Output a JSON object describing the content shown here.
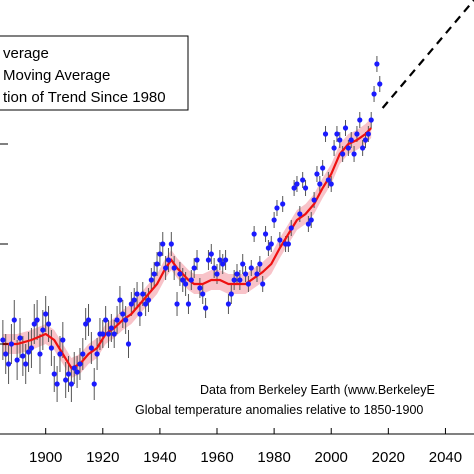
{
  "chart_data": {
    "type": "scatter",
    "xlim": [
      1884,
      2050
    ],
    "ylim": [
      -0.45,
      1.72
    ],
    "x_ticks": [
      "1900",
      "1920",
      "1940",
      "1960",
      "1980",
      "2000",
      "2020",
      "2040"
    ],
    "grid": false,
    "legend": {
      "placement": "top-left",
      "entries": [
        "verage",
        "Moving Average",
        "tion of Trend Since 1980"
      ]
    },
    "annotations": [
      "Data from Berkeley Earth (www.BerkeleyE",
      "Global temperature anomalies relative to 1850-1900"
    ],
    "colors": {
      "annual": "#1a1aff",
      "moving_average": "#ee1111",
      "uncertainty_band": "#f7b8c0",
      "error_bar": "#555555",
      "trend": "#000000"
    },
    "series": [
      {
        "type": "scatter-errorbar",
        "x": [
          1885,
          1886,
          1887,
          1888,
          1889,
          1890,
          1891,
          1892,
          1893,
          1894,
          1895,
          1896,
          1897,
          1898,
          1899,
          1900,
          1901,
          1902,
          1903,
          1904,
          1905,
          1906,
          1907,
          1908,
          1909,
          1910,
          1911,
          1912,
          1913,
          1914,
          1915,
          1916,
          1917,
          1918,
          1919,
          1920,
          1921,
          1922,
          1923,
          1924,
          1925,
          1926,
          1927,
          1928,
          1929,
          1930,
          1931,
          1932,
          1933,
          1934,
          1935,
          1936,
          1937,
          1938,
          1939,
          1940,
          1941,
          1942,
          1943,
          1944,
          1945,
          1946,
          1947,
          1948,
          1949,
          1950,
          1951,
          1952,
          1953,
          1954,
          1955,
          1956,
          1957,
          1958,
          1959,
          1960,
          1961,
          1962,
          1963,
          1964,
          1965,
          1966,
          1967,
          1968,
          1969,
          1970,
          1971,
          1972,
          1973,
          1974,
          1975,
          1976,
          1977,
          1978,
          1979,
          1980,
          1981,
          1982,
          1983,
          1984,
          1985,
          1986,
          1987,
          1988,
          1989,
          1990,
          1991,
          1992,
          1993,
          1994,
          1995,
          1996,
          1997,
          1998,
          1999,
          2000,
          2001,
          2002,
          2003,
          2004,
          2005,
          2006,
          2007,
          2008,
          2009,
          2010,
          2011,
          2012,
          2013,
          2014,
          2015,
          2016,
          2017
        ],
        "y": [
          0.02,
          -0.05,
          -0.1,
          0.0,
          0.12,
          -0.08,
          0.03,
          -0.06,
          -0.1,
          -0.04,
          -0.02,
          0.1,
          0.12,
          -0.05,
          0.07,
          0.15,
          0.1,
          -0.02,
          -0.15,
          -0.2,
          -0.05,
          0.02,
          -0.18,
          -0.15,
          -0.2,
          -0.12,
          -0.14,
          -0.1,
          -0.05,
          0.1,
          0.12,
          -0.02,
          -0.2,
          -0.05,
          0.05,
          0.05,
          0.12,
          0.05,
          0.08,
          0.05,
          0.12,
          0.22,
          0.15,
          0.12,
          0.0,
          0.2,
          0.22,
          0.25,
          0.15,
          0.25,
          0.2,
          0.22,
          0.32,
          0.35,
          0.4,
          0.45,
          0.5,
          0.38,
          0.42,
          0.5,
          0.38,
          0.2,
          0.35,
          0.32,
          0.3,
          0.2,
          0.32,
          0.38,
          0.42,
          0.28,
          0.25,
          0.18,
          0.42,
          0.45,
          0.38,
          0.35,
          0.42,
          0.4,
          0.42,
          0.2,
          0.25,
          0.32,
          0.35,
          0.32,
          0.4,
          0.35,
          0.3,
          0.38,
          0.55,
          0.35,
          0.4,
          0.3,
          0.55,
          0.48,
          0.5,
          0.62,
          0.68,
          0.52,
          0.7,
          0.5,
          0.5,
          0.58,
          0.78,
          0.8,
          0.65,
          0.82,
          0.78,
          0.6,
          0.62,
          0.72,
          0.85,
          0.8,
          0.88,
          1.05,
          0.82,
          0.8,
          0.98,
          1.05,
          1.02,
          0.95,
          1.08,
          0.98,
          1.02,
          0.95,
          1.05,
          1.12,
          0.98,
          1.02,
          1.05,
          1.12,
          1.25,
          1.4,
          1.3
        ],
        "err": [
          0.1,
          0.1,
          0.1,
          0.1,
          0.1,
          0.1,
          0.1,
          0.1,
          0.1,
          0.1,
          0.1,
          0.1,
          0.1,
          0.1,
          0.1,
          0.09,
          0.09,
          0.09,
          0.09,
          0.09,
          0.09,
          0.09,
          0.09,
          0.09,
          0.09,
          0.08,
          0.08,
          0.08,
          0.08,
          0.08,
          0.08,
          0.08,
          0.08,
          0.08,
          0.08,
          0.07,
          0.07,
          0.07,
          0.07,
          0.07,
          0.07,
          0.07,
          0.07,
          0.07,
          0.07,
          0.06,
          0.06,
          0.06,
          0.06,
          0.06,
          0.06,
          0.06,
          0.06,
          0.06,
          0.06,
          0.06,
          0.06,
          0.06,
          0.06,
          0.06,
          0.06,
          0.06,
          0.06,
          0.06,
          0.06,
          0.05,
          0.05,
          0.05,
          0.05,
          0.05,
          0.05,
          0.05,
          0.05,
          0.05,
          0.05,
          0.05,
          0.05,
          0.05,
          0.05,
          0.05,
          0.05,
          0.05,
          0.05,
          0.05,
          0.05,
          0.04,
          0.04,
          0.04,
          0.04,
          0.04,
          0.04,
          0.04,
          0.04,
          0.04,
          0.04,
          0.04,
          0.04,
          0.04,
          0.04,
          0.04,
          0.04,
          0.04,
          0.04,
          0.04,
          0.04,
          0.04,
          0.04,
          0.04,
          0.04,
          0.04,
          0.04,
          0.04,
          0.04,
          0.04,
          0.04,
          0.04,
          0.04,
          0.04,
          0.04,
          0.04,
          0.04,
          0.04,
          0.04,
          0.04,
          0.04,
          0.04,
          0.04,
          0.04,
          0.04,
          0.04,
          0.04,
          0.04,
          0.04
        ]
      },
      {
        "type": "line",
        "x": [
          1885,
          1890,
          1895,
          1900,
          1903,
          1906,
          1909,
          1912,
          1915,
          1918,
          1921,
          1924,
          1927,
          1930,
          1933,
          1936,
          1939,
          1942,
          1944,
          1946,
          1948,
          1950,
          1952,
          1955,
          1958,
          1961,
          1964,
          1967,
          1970,
          1973,
          1976,
          1979,
          1982,
          1985,
          1988,
          1991,
          1994,
          1997,
          2000,
          2003,
          2006,
          2009,
          2012,
          2014
        ],
        "y": [
          0.0,
          0.0,
          0.02,
          0.05,
          0.02,
          -0.05,
          -0.12,
          -0.1,
          -0.05,
          -0.02,
          0.05,
          0.08,
          0.12,
          0.15,
          0.2,
          0.25,
          0.3,
          0.38,
          0.42,
          0.38,
          0.35,
          0.32,
          0.3,
          0.3,
          0.32,
          0.32,
          0.3,
          0.3,
          0.3,
          0.33,
          0.36,
          0.4,
          0.48,
          0.55,
          0.62,
          0.65,
          0.7,
          0.78,
          0.85,
          0.95,
          1.0,
          1.02,
          1.05,
          1.08
        ]
      },
      {
        "type": "dashed-line",
        "x": [
          2018,
          2050
        ],
        "y": [
          1.18,
          1.72
        ]
      }
    ]
  }
}
